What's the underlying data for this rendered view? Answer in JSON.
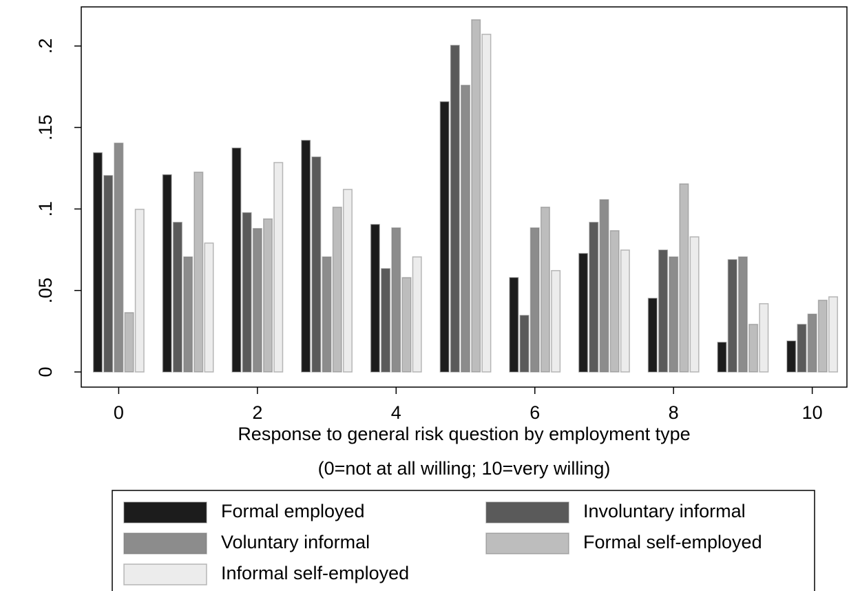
{
  "chart_data": {
    "type": "bar",
    "xlabel": "Response to general risk question by employment type",
    "xlabel_note": "(0=not at all willing; 10=very willing)",
    "x": [
      0,
      1,
      2,
      3,
      4,
      5,
      6,
      7,
      8,
      9,
      10
    ],
    "series": [
      {
        "name": "Formal employed",
        "color": "#1c1c1c",
        "values": [
          0.1345,
          0.121,
          0.1374,
          0.1421,
          0.0905,
          0.1658,
          0.0579,
          0.0727,
          0.0452,
          0.0182,
          0.019
        ]
      },
      {
        "name": "Involuntary informal",
        "color": "#5a5a5a",
        "values": [
          0.1205,
          0.0918,
          0.0977,
          0.1319,
          0.0634,
          0.2004,
          0.0347,
          0.0918,
          0.0748,
          0.0689,
          0.0292
        ]
      },
      {
        "name": "Voluntary informal",
        "color": "#8c8c8c",
        "values": [
          0.1404,
          0.0706,
          0.088,
          0.0706,
          0.0884,
          0.1759,
          0.0884,
          0.1057,
          0.0706,
          0.0706,
          0.0355
        ]
      },
      {
        "name": "Formal self-employed",
        "color": "#bdbdbd",
        "values": [
          0.0364,
          0.1226,
          0.0939,
          0.1011,
          0.0579,
          0.2161,
          0.1011,
          0.0867,
          0.1154,
          0.0292,
          0.044
        ]
      },
      {
        "name": "Informal self-employed",
        "color": "#ececec",
        "values": [
          0.0998,
          0.0791,
          0.1285,
          0.112,
          0.0706,
          0.2072,
          0.0622,
          0.0748,
          0.0829,
          0.0419,
          0.0461
        ]
      }
    ],
    "xlim": [
      -0.54,
      10.5
    ],
    "xticks": [
      0,
      2,
      4,
      6,
      8,
      10
    ],
    "ylim": [
      -0.0093,
      0.224
    ],
    "yticks": [
      0,
      {
        "value": 0.05,
        "label": ".05"
      },
      {
        "value": 0.1,
        "label": ".1"
      },
      {
        "value": 0.15,
        "label": ".15"
      },
      {
        "value": 0.2,
        "label": ".2"
      }
    ],
    "grid": false
  }
}
